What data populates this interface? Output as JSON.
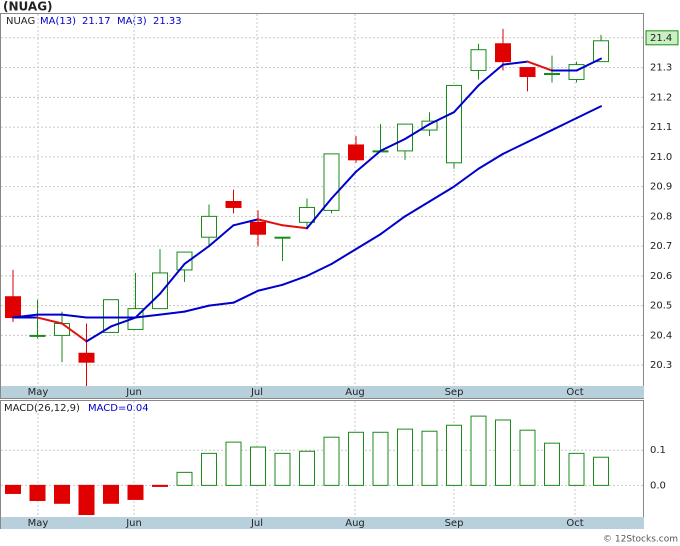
{
  "chart_data": [
    {
      "type": "candlestick",
      "title": "(NUAG)",
      "symbol": "NUAG",
      "categories": [
        null,
        null,
        null,
        null,
        null,
        null,
        null,
        null,
        null,
        null,
        null,
        null,
        null,
        null,
        null,
        null,
        null,
        null,
        null,
        null,
        null,
        null,
        null,
        null,
        null
      ],
      "open": [
        20.53,
        20.4,
        20.4,
        20.34,
        20.41,
        20.42,
        20.49,
        20.62,
        20.73,
        20.85,
        20.78,
        20.73,
        20.78,
        20.82,
        21.04,
        21.02,
        21.02,
        21.09,
        20.98,
        21.29,
        21.38,
        21.3,
        21.28,
        21.26,
        21.32
      ],
      "high": [
        20.62,
        20.52,
        20.48,
        20.44,
        20.52,
        20.61,
        20.69,
        20.68,
        20.84,
        20.89,
        20.82,
        20.73,
        20.86,
        21.01,
        21.07,
        21.11,
        21.11,
        21.15,
        21.24,
        21.38,
        21.43,
        21.3,
        21.34,
        21.32,
        21.41
      ],
      "low": [
        20.445,
        20.39,
        20.31,
        20.23,
        20.41,
        20.42,
        20.49,
        20.58,
        20.7,
        20.81,
        20.7,
        20.65,
        20.76,
        20.81,
        20.98,
        21.02,
        20.99,
        21.07,
        20.96,
        21.26,
        21.29,
        21.22,
        21.25,
        21.25,
        21.32
      ],
      "close": [
        20.46,
        20.4,
        20.44,
        20.31,
        20.52,
        20.49,
        20.61,
        20.68,
        20.8,
        20.83,
        20.74,
        20.73,
        20.83,
        21.01,
        20.99,
        21.02,
        21.11,
        21.12,
        21.24,
        21.36,
        21.32,
        21.27,
        21.28,
        21.31,
        21.39
      ],
      "up_color": "#1a8a1a",
      "down_color": "#e00000",
      "series": [
        {
          "name": "MA(13)",
          "last": 21.17,
          "color": "#0000cc",
          "values": [
            20.46,
            20.47,
            20.47,
            20.46,
            20.46,
            20.46,
            20.47,
            20.48,
            20.5,
            20.51,
            20.55,
            20.57,
            20.6,
            20.64,
            20.69,
            20.74,
            20.8,
            20.85,
            20.9,
            20.96,
            21.01,
            21.05,
            21.09,
            21.13,
            21.17
          ]
        },
        {
          "name": "MA(3)",
          "last": 21.33,
          "color": "#0000cc",
          "down_color": "#e01010",
          "values": [
            20.46,
            20.46,
            20.44,
            20.38,
            20.43,
            20.46,
            20.54,
            20.64,
            20.7,
            20.77,
            20.79,
            20.77,
            20.76,
            20.86,
            20.95,
            21.02,
            21.06,
            21.11,
            21.15,
            21.24,
            21.31,
            21.32,
            21.29,
            21.29,
            21.33
          ]
        }
      ],
      "last_price": 21.4,
      "ylim": [
        20.23,
        21.48
      ],
      "yticks": [
        20.3,
        20.4,
        20.5,
        20.6,
        20.7,
        20.8,
        20.9,
        {
          "value": 21,
          "label": "21.0"
        },
        21.1,
        21.2,
        21.3,
        21.4
      ],
      "xticks": [
        {
          "value": 1.02,
          "label": "May"
        },
        {
          "value": 4.94,
          "label": "Jun"
        },
        {
          "value": 9.96,
          "label": "Jul"
        },
        {
          "value": 13.96,
          "label": "Aug"
        },
        {
          "value": 18.0,
          "label": "Sep"
        },
        {
          "value": 22.94,
          "label": "Oct"
        }
      ],
      "grid": true
    },
    {
      "type": "bar",
      "title": "MACD(26,12,9)",
      "macd_label": "MACD=0.04",
      "categories": [
        null,
        null,
        null,
        null,
        null,
        null,
        null,
        null,
        null,
        null,
        null,
        null,
        null,
        null,
        null,
        null,
        null,
        null,
        null,
        null,
        null,
        null,
        null,
        null,
        null
      ],
      "values": [
        -0.023,
        -0.043,
        -0.051,
        -0.083,
        -0.051,
        -0.04,
        -0.003,
        0.037,
        0.091,
        0.123,
        0.109,
        0.091,
        0.097,
        0.137,
        0.151,
        0.151,
        0.16,
        0.154,
        0.171,
        0.197,
        0.186,
        0.157,
        0.12,
        0.091,
        0.08
      ],
      "up_color": "#1a8a1a",
      "down_color": "#e00000",
      "ylim": [
        -0.09,
        0.24
      ],
      "yticks": [
        0.1,
        {
          "value": 0,
          "label": "0.0"
        }
      ],
      "xticks": [
        {
          "value": 1.02,
          "label": "May"
        },
        {
          "value": 4.94,
          "label": "Jun"
        },
        {
          "value": 9.96,
          "label": "Jul"
        },
        {
          "value": 13.96,
          "label": "Aug"
        },
        {
          "value": 18.0,
          "label": "Sep"
        },
        {
          "value": 22.94,
          "label": "Oct"
        }
      ],
      "grid": true
    }
  ]
}
